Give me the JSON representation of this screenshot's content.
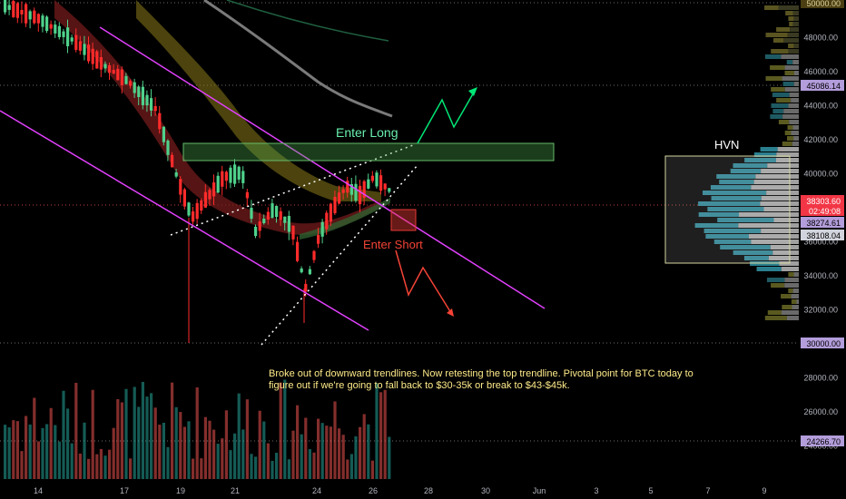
{
  "chart_data": {
    "type": "candlestick",
    "symbol": "BTC",
    "y_axis_ticks": [
      "50000.00",
      "48000.00",
      "46000.00",
      "44000.00",
      "42000.00",
      "40000.00",
      "38000.00",
      "36000.00",
      "34000.00",
      "32000.00",
      "30000.00",
      "28000.00",
      "26000.00",
      "24000.00"
    ],
    "x_axis_ticks": [
      "14",
      "17",
      "19",
      "21",
      "24",
      "26",
      "28",
      "30",
      "Jun",
      "3",
      "5",
      "7",
      "9"
    ],
    "price_labels": [
      {
        "value": "50000.00",
        "color": "#4a3e12",
        "text_color": "#e0d39a"
      },
      {
        "value": "45086.14",
        "color": "#b39ddb",
        "text_color": "#000000"
      },
      {
        "value": "38303.60",
        "color": "#f23645",
        "text_color": "#ffffff"
      },
      {
        "value": "02:49:08",
        "color": "#f23645",
        "text_color": "#ffffff"
      },
      {
        "value": "38274.61",
        "color": "#b39ddb",
        "text_color": "#000000"
      },
      {
        "value": "38108.04",
        "color": "#d1d4dc",
        "text_color": "#000000"
      },
      {
        "value": "30000.00",
        "color": "#b39ddb",
        "text_color": "#000000"
      },
      {
        "value": "24266.70",
        "color": "#b39ddb",
        "text_color": "#000000"
      }
    ],
    "horizontal_levels": [
      50000,
      45086.14,
      30000,
      24266.7
    ],
    "current_price": 38303.6,
    "annotations": {
      "enter_long": "Enter Long",
      "enter_short": "Enter Short",
      "hvn": "HVN",
      "note_line1": "Broke out of downward trendlines. Now retesting the top trendline. Pivotal point for BTC today to",
      "note_line2": "figure out if we're going to fall back to $30-35k or break to $43-$45k."
    },
    "colors": {
      "up": "#26a69a",
      "down": "#ef5350",
      "trendline": "#e040fb",
      "long_zone": "#4caf50",
      "short_zone": "#e53935",
      "arrow_up": "#00e676",
      "arrow_down": "#f44336",
      "note_text": "#ffeb8a"
    }
  }
}
